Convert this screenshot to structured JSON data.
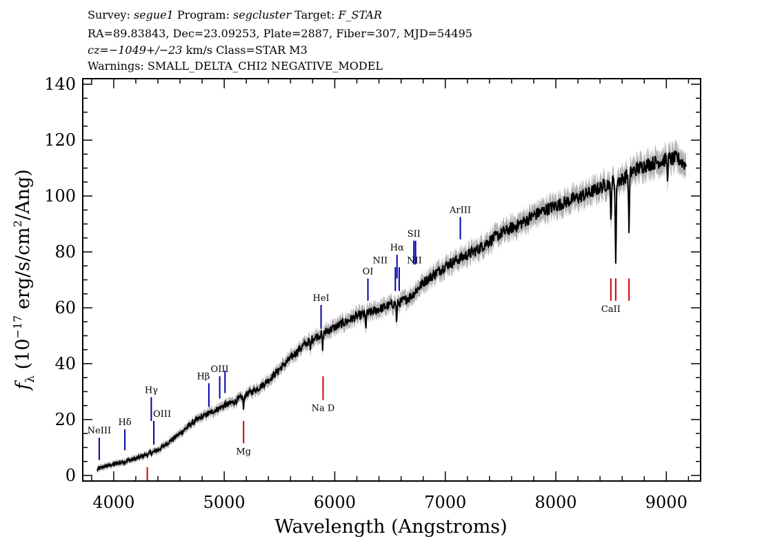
{
  "header": {
    "line1": [
      {
        "t": "Survey: ",
        "i": false
      },
      {
        "t": "segue1",
        "i": true
      },
      {
        "t": " Program: ",
        "i": false
      },
      {
        "t": "segcluster",
        "i": true
      },
      {
        "t": " Target: ",
        "i": false
      },
      {
        "t": "F_STAR",
        "i": true
      }
    ],
    "line2": "RA=89.83843, Dec=23.09253, Plate=2887, Fiber=307, MJD=54495",
    "line3": [
      {
        "t": "cz=−1049+/−23",
        "i": true
      },
      {
        "t": " km/s Class=STAR M3",
        "i": false
      }
    ],
    "line4": "Warnings: SMALL_DELTA_CHI2 NEGATIVE_MODEL"
  },
  "colors": {
    "emission": "#0000aa",
    "absorption": "#cc0000",
    "flux": "#000000",
    "error_band": "#b0b0b0"
  },
  "chart_data": {
    "type": "line",
    "xlabel": "Wavelength (Angstroms)",
    "ylabel": "f_λ (10^-17 erg/s/cm^2/Ang)",
    "xlim": [
      3720,
      9310
    ],
    "ylim": [
      -2,
      142
    ],
    "xticks": [
      4000,
      5000,
      6000,
      7000,
      8000,
      9000
    ],
    "yticks": [
      0,
      20,
      40,
      60,
      80,
      100,
      120,
      140
    ],
    "x_minor_step": 200,
    "y_minor_step": 5,
    "grid": false,
    "series": [
      {
        "x": [
          3850,
          3900,
          3950,
          4000,
          4100,
          4200,
          4300,
          4400,
          4500,
          4600,
          4700,
          4800,
          4900,
          5000,
          5100,
          5200,
          5300,
          5400,
          5500,
          5600,
          5700,
          5800,
          5900,
          6000,
          6100,
          6200,
          6300,
          6400,
          6500,
          6600,
          6700,
          6800,
          6900,
          7000,
          7100,
          7200,
          7300,
          7400,
          7500,
          7600,
          7700,
          7800,
          7900,
          8000,
          8100,
          8200,
          8300,
          8400,
          8450,
          8500,
          8600,
          8700,
          8800,
          8900,
          9000,
          9100,
          9180
        ],
        "y": [
          2,
          3,
          3.5,
          4,
          5,
          6,
          7.5,
          9,
          12,
          15,
          18.5,
          21,
          23,
          25,
          26.5,
          29,
          31,
          34,
          38,
          42,
          46,
          49,
          51,
          53,
          55,
          57,
          58,
          59.5,
          61,
          62,
          64.5,
          69,
          72,
          75,
          77,
          79,
          81,
          84,
          86.5,
          88.5,
          90.5,
          93,
          95,
          96.5,
          98,
          99.5,
          101,
          103,
          104,
          105,
          106,
          109,
          111,
          112,
          113,
          113.5,
          111
        ]
      }
    ],
    "absorption_dips": [
      {
        "x": 5175,
        "depth": 5
      },
      {
        "x": 5890,
        "depth": 6
      },
      {
        "x": 5780,
        "depth": 4
      },
      {
        "x": 6280,
        "depth": 5
      },
      {
        "x": 6560,
        "depth": 7
      },
      {
        "x": 8498,
        "depth": 14
      },
      {
        "x": 8542,
        "depth": 30
      },
      {
        "x": 8662,
        "depth": 20
      },
      {
        "x": 9010,
        "depth": 6
      }
    ],
    "lines": [
      {
        "label": "NeIII",
        "x": 3869,
        "y1": 5.5,
        "y2": 13.5,
        "kind": "emission",
        "label_dx": 0
      },
      {
        "label": "Hδ",
        "x": 4101,
        "y1": 9,
        "y2": 16.5,
        "kind": "emission",
        "label_dx": 0
      },
      {
        "label": "Hγ",
        "x": 4340,
        "y1": 19.5,
        "y2": 28,
        "kind": "emission",
        "label_dx": 0
      },
      {
        "label": "OIII",
        "x": 4363,
        "y1": 11,
        "y2": 19.5,
        "kind": "emission",
        "label_dx": 12
      },
      {
        "label": "Hβ",
        "x": 4861,
        "y1": 24.5,
        "y2": 33,
        "kind": "emission",
        "label_dx": -8
      },
      {
        "label": "OIII",
        "x": 4959,
        "y1": 27.5,
        "y2": 35.5,
        "kind": "emission",
        "label_dx": 0
      },
      {
        "label": "",
        "x": 5007,
        "y1": 29.5,
        "y2": 37.5,
        "kind": "emission",
        "label_dx": 0
      },
      {
        "label": "HeI",
        "x": 5876,
        "y1": 52.5,
        "y2": 61,
        "kind": "emission",
        "label_dx": 0
      },
      {
        "label": "OI",
        "x": 6300,
        "y1": 62.5,
        "y2": 70.5,
        "kind": "emission",
        "label_dx": 0
      },
      {
        "label": "NII",
        "x": 6548,
        "y1": 66,
        "y2": 74.5,
        "kind": "emission",
        "label_dx": -22
      },
      {
        "label": "Hα",
        "x": 6563,
        "y1": 70.5,
        "y2": 79,
        "kind": "emission",
        "label_dx": 0
      },
      {
        "label": "NII",
        "x": 6583,
        "y1": 66,
        "y2": 74.5,
        "kind": "emission",
        "label_dx": 22
      },
      {
        "label": "SII",
        "x": 6716,
        "y1": 75.5,
        "y2": 84,
        "kind": "emission",
        "label_dx": 0
      },
      {
        "label": "",
        "x": 6731,
        "y1": 75.5,
        "y2": 84,
        "kind": "emission",
        "label_dx": 0
      },
      {
        "label": "ArIII",
        "x": 7136,
        "y1": 84.5,
        "y2": 92.5,
        "kind": "emission",
        "label_dx": 0
      },
      {
        "label": "",
        "x": 4304,
        "y1": -2,
        "y2": 3,
        "kind": "absorption",
        "label_dx": 0
      },
      {
        "label": "Mg",
        "x": 5175,
        "y1": 11.5,
        "y2": 19.5,
        "kind": "absorption",
        "label_dx": 0
      },
      {
        "label": "Na D",
        "x": 5894,
        "y1": 27,
        "y2": 35.5,
        "kind": "absorption",
        "label_dx": 0
      },
      {
        "label": "CaII",
        "x": 8498,
        "y1": 62.5,
        "y2": 70.5,
        "kind": "absorption",
        "label_dx": 0
      },
      {
        "label": "",
        "x": 8542,
        "y1": 62.5,
        "y2": 70.5,
        "kind": "absorption",
        "label_dx": 0
      },
      {
        "label": "",
        "x": 8662,
        "y1": 62.5,
        "y2": 70.5,
        "kind": "absorption",
        "label_dx": 0
      }
    ]
  }
}
